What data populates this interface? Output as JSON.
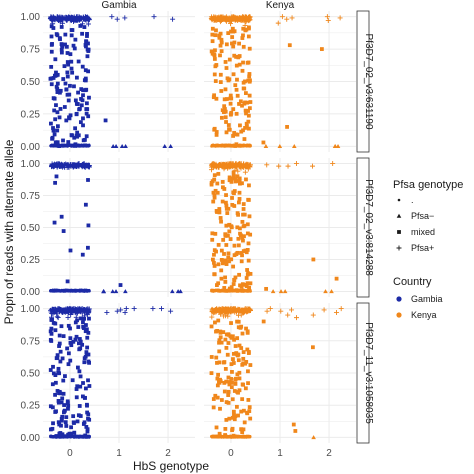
{
  "chart_data": {
    "type": "scatter",
    "facet_columns": [
      "Gambia",
      "Kenya"
    ],
    "facet_rows": [
      "Pf3D7_02_v3:631190",
      "Pf3D7_02_v3:814288",
      "Pf3D7_11_v3:1058035"
    ],
    "xlabel": "HbS genotype",
    "ylabel": "Propn of reads with alternate allele",
    "x_ticks": [
      "0",
      "1",
      "2"
    ],
    "y_ticks": [
      "0.00",
      "0.25",
      "0.50",
      "0.75",
      "1.00"
    ],
    "ylim": [
      0,
      1
    ],
    "x_jitter": "points jittered horizontally around each genotype",
    "grid": true,
    "colors": {
      "Gambia": "#1c2aa6",
      "Kenya": "#f0871b",
      "panel_grid": "#ebebeb",
      "strip_border": "#333333"
    },
    "legend": {
      "position": "right",
      "shape_title": "Pfsa genotype",
      "shape_items": [
        {
          "label": ".",
          "shape": "dot"
        },
        {
          "label": "Pfsa−",
          "shape": "triangle"
        },
        {
          "label": "mixed",
          "shape": "square"
        },
        {
          "label": "Pfsa+",
          "shape": "plus"
        }
      ],
      "color_title": "Country",
      "color_items": [
        {
          "label": "Gambia",
          "country": "Gambia"
        },
        {
          "label": "Kenya",
          "country": "Kenya"
        }
      ]
    },
    "panels": [
      {
        "row": 0,
        "country": "Gambia",
        "groups": [
          {
            "x": 0,
            "n_zero": 300,
            "n_one": 200,
            "n_mid": 160,
            "mid_shape": "square",
            "extreme_shapes": [
              "dot",
              "plus"
            ]
          },
          {
            "x": 1,
            "points": [
              [
                0.98,
                "plus"
              ],
              [
                1.0,
                "plus"
              ],
              [
                0.99,
                "plus"
              ],
              [
                0.2,
                "square"
              ],
              [
                0.0,
                "triangle"
              ],
              [
                0.0,
                "triangle"
              ],
              [
                0.0,
                "triangle"
              ],
              [
                0.0,
                "triangle"
              ]
            ]
          },
          {
            "x": 2,
            "points": [
              [
                1.0,
                "plus"
              ],
              [
                0.98,
                "plus"
              ],
              [
                0.0,
                "triangle"
              ],
              [
                0.0,
                "triangle"
              ]
            ]
          }
        ]
      },
      {
        "row": 0,
        "country": "Kenya",
        "groups": [
          {
            "x": 0,
            "n_zero": 300,
            "n_one": 200,
            "n_mid": 150,
            "mid_shape": "square",
            "extreme_shapes": [
              "dot",
              "plus"
            ]
          },
          {
            "x": 1,
            "points": [
              [
                0.99,
                "plus"
              ],
              [
                1.0,
                "plus"
              ],
              [
                0.98,
                "plus"
              ],
              [
                0.95,
                "plus"
              ],
              [
                0.78,
                "square"
              ],
              [
                0.15,
                "square"
              ],
              [
                0.03,
                "square"
              ],
              [
                0.0,
                "triangle"
              ],
              [
                0.0,
                "triangle"
              ],
              [
                0.0,
                "triangle"
              ]
            ]
          },
          {
            "x": 2,
            "points": [
              [
                1.0,
                "plus"
              ],
              [
                0.97,
                "plus"
              ],
              [
                0.99,
                "plus"
              ],
              [
                0.75,
                "square"
              ],
              [
                0.0,
                "triangle"
              ],
              [
                0.0,
                "triangle"
              ],
              [
                0.0,
                "triangle"
              ]
            ]
          }
        ]
      },
      {
        "row": 1,
        "country": "Gambia",
        "groups": [
          {
            "x": 0,
            "n_zero": 280,
            "n_one": 150,
            "n_mid": 12,
            "mid_shape": "square",
            "extreme_shapes": [
              "dot",
              "plus"
            ]
          },
          {
            "x": 1,
            "points": [
              [
                0.0,
                "triangle"
              ],
              [
                0.0,
                "triangle"
              ],
              [
                0.0,
                "triangle"
              ],
              [
                0.0,
                "triangle"
              ],
              [
                0.0,
                "triangle"
              ],
              [
                0.05,
                "square"
              ],
              [
                0.0,
                "triangle"
              ]
            ]
          },
          {
            "x": 2,
            "points": [
              [
                0.0,
                "triangle"
              ],
              [
                0.0,
                "triangle"
              ],
              [
                0.0,
                "triangle"
              ]
            ]
          }
        ]
      },
      {
        "row": 1,
        "country": "Kenya",
        "groups": [
          {
            "x": 0,
            "n_zero": 280,
            "n_one": 180,
            "n_mid": 170,
            "mid_shape": "square",
            "extreme_shapes": [
              "dot",
              "plus"
            ]
          },
          {
            "x": 1,
            "points": [
              [
                0.99,
                "plus"
              ],
              [
                1.0,
                "plus"
              ],
              [
                0.98,
                "plus"
              ],
              [
                0.98,
                "plus"
              ],
              [
                0.02,
                "square"
              ],
              [
                0.0,
                "triangle"
              ],
              [
                0.0,
                "triangle"
              ],
              [
                0.0,
                "triangle"
              ]
            ]
          },
          {
            "x": 2,
            "points": [
              [
                1.0,
                "plus"
              ],
              [
                0.98,
                "plus"
              ],
              [
                0.25,
                "square"
              ],
              [
                0.1,
                "square"
              ],
              [
                0.0,
                "triangle"
              ],
              [
                0.0,
                "triangle"
              ]
            ]
          }
        ]
      },
      {
        "row": 2,
        "country": "Gambia",
        "groups": [
          {
            "x": 0,
            "n_zero": 300,
            "n_one": 200,
            "n_mid": 170,
            "mid_shape": "square",
            "extreme_shapes": [
              "dot",
              "plus"
            ]
          },
          {
            "x": 1,
            "points": [
              [
                1.0,
                "plus"
              ],
              [
                0.98,
                "plus"
              ],
              [
                0.97,
                "plus"
              ],
              [
                0.99,
                "plus"
              ],
              [
                1.0,
                "plus"
              ],
              [
                0.97,
                "plus"
              ]
            ]
          },
          {
            "x": 2,
            "points": [
              [
                1.0,
                "plus"
              ],
              [
                0.98,
                "plus"
              ],
              [
                1.0,
                "plus"
              ]
            ]
          }
        ]
      },
      {
        "row": 2,
        "country": "Kenya",
        "groups": [
          {
            "x": 0,
            "n_zero": 300,
            "n_one": 200,
            "n_mid": 150,
            "mid_shape": "square",
            "extreme_shapes": [
              "dot",
              "plus"
            ]
          },
          {
            "x": 1,
            "points": [
              [
                1.0,
                "plus"
              ],
              [
                0.98,
                "plus"
              ],
              [
                0.95,
                "plus"
              ],
              [
                0.99,
                "plus"
              ],
              [
                0.93,
                "plus"
              ],
              [
                0.98,
                "plus"
              ],
              [
                0.9,
                "square"
              ],
              [
                0.1,
                "square"
              ],
              [
                0.05,
                "square"
              ]
            ]
          },
          {
            "x": 2,
            "points": [
              [
                1.0,
                "plus"
              ],
              [
                0.97,
                "plus"
              ],
              [
                0.99,
                "plus"
              ],
              [
                0.95,
                "plus"
              ],
              [
                0.7,
                "square"
              ],
              [
                0.0,
                "triangle"
              ]
            ]
          }
        ]
      }
    ]
  }
}
